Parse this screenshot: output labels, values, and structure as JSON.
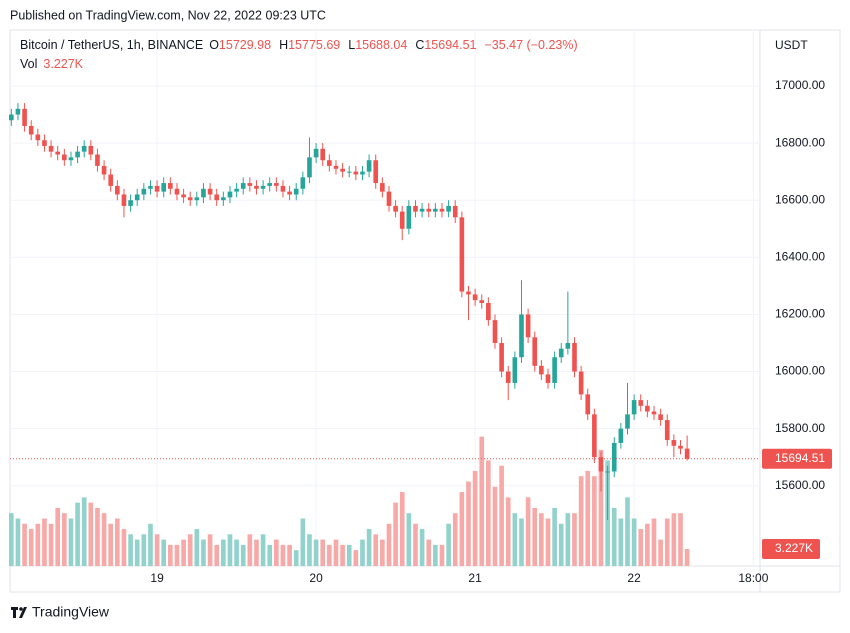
{
  "chart_data": {
    "type": "candlestick",
    "published": "Published on TradingView.com, Nov 22, 2022 09:23 UTC",
    "title": "Bitcoin / TetherUS, 1h, BINANCE",
    "field_labels": [
      "O",
      "H",
      "L",
      "C"
    ],
    "change": "−35.47 (−0.23%)",
    "volume_title": "Vol",
    "volume_label": "3.227K",
    "currency": "USDT",
    "brand": "TradingView",
    "up_color": "#26a69a",
    "down_color": "#ef5350",
    "volume_up_color": "#92d2cc",
    "volume_down_color": "#f7a9a7",
    "grid": true,
    "xlim": [
      -0.2,
      113
    ],
    "xticks": [
      {
        "value": 22,
        "label": "19"
      },
      {
        "value": 46,
        "label": "20"
      },
      {
        "value": 70,
        "label": "21"
      },
      {
        "value": 94,
        "label": "22"
      },
      {
        "value": 112,
        "label": "18:00"
      }
    ],
    "ylim": [
      15319,
      17196
    ],
    "yticks": [
      {
        "value": 15600,
        "label": "15600.00"
      },
      {
        "value": 15800,
        "label": "15800.00"
      },
      {
        "value": 16000,
        "label": "16000.00"
      },
      {
        "value": 16200,
        "label": "16200.00"
      },
      {
        "value": 16400,
        "label": "16400.00"
      },
      {
        "value": 16600,
        "label": "16600.00"
      },
      {
        "value": 16800,
        "label": "16800.00"
      },
      {
        "value": 17000,
        "label": "17000.00"
      }
    ],
    "volume_ylim": [
      0,
      101.5
    ],
    "open": [
      16880,
      16900,
      16920,
      16860,
      16830,
      16810,
      16790,
      16770,
      16760,
      16740,
      16750,
      16770,
      16790,
      16760,
      16720,
      16690,
      16650,
      16620,
      16580,
      16600,
      16620,
      16640,
      16650,
      16630,
      16660,
      16640,
      16620,
      16610,
      16600,
      16610,
      16640,
      16620,
      16600,
      16610,
      16630,
      16640,
      16660,
      16650,
      16640,
      16650,
      16660,
      16650,
      16630,
      16620,
      16640,
      16680,
      16750,
      16780,
      16740,
      16720,
      16710,
      16700,
      16700,
      16690,
      16700,
      16740,
      16660,
      16630,
      16580,
      16560,
      16500,
      16580,
      16560,
      16570,
      16560,
      16570,
      16560,
      16580,
      16540,
      16280,
      16270,
      16250,
      16240,
      16180,
      16100,
      16000,
      15960,
      16050,
      16200,
      16120,
      16020,
      15990,
      15960,
      16050,
      16080,
      16100,
      16000,
      15920,
      15850,
      15700,
      15650,
      15650,
      15750,
      15800,
      15850,
      15900,
      15880,
      15860,
      15850,
      15830,
      15760,
      15740,
      15729.98
    ],
    "high": [
      16920,
      16940,
      16940,
      16880,
      16850,
      16830,
      16810,
      16790,
      16780,
      16770,
      16790,
      16810,
      16810,
      16780,
      16740,
      16710,
      16670,
      16640,
      16620,
      16640,
      16660,
      16670,
      16670,
      16680,
      16680,
      16660,
      16640,
      16630,
      16630,
      16660,
      16660,
      16640,
      16630,
      16650,
      16660,
      16680,
      16680,
      16670,
      16670,
      16680,
      16680,
      16670,
      16650,
      16660,
      16700,
      16820,
      16800,
      16800,
      16760,
      16740,
      16730,
      16720,
      16720,
      16720,
      16760,
      16760,
      16680,
      16650,
      16600,
      16580,
      16600,
      16600,
      16590,
      16590,
      16590,
      16590,
      16600,
      16600,
      16560,
      16300,
      16290,
      16270,
      16260,
      16200,
      16120,
      16020,
      16070,
      16320,
      16220,
      16140,
      16040,
      16010,
      16070,
      16100,
      16280,
      16120,
      16020,
      15940,
      15870,
      15720,
      15670,
      15770,
      15820,
      15960,
      15920,
      15920,
      15900,
      15880,
      15870,
      15850,
      15780,
      15760,
      15775.69
    ],
    "low": [
      16860,
      16880,
      16840,
      16810,
      16790,
      16770,
      16750,
      16740,
      16720,
      16720,
      16730,
      16750,
      16740,
      16700,
      16670,
      16630,
      16600,
      16540,
      16560,
      16580,
      16600,
      16620,
      16610,
      16610,
      16620,
      16600,
      16590,
      16580,
      16580,
      16590,
      16600,
      16580,
      16580,
      16590,
      16610,
      16620,
      16630,
      16620,
      16620,
      16630,
      16630,
      16610,
      16600,
      16600,
      16620,
      16660,
      16730,
      16720,
      16700,
      16690,
      16680,
      16680,
      16670,
      16670,
      16680,
      16640,
      16610,
      16560,
      16540,
      16460,
      16480,
      16540,
      16540,
      16540,
      16540,
      16540,
      16540,
      16520,
      16260,
      16180,
      16230,
      16220,
      16160,
      16080,
      15980,
      15900,
      15940,
      16030,
      16100,
      16000,
      15970,
      15940,
      15940,
      16030,
      16060,
      15980,
      15900,
      15830,
      15680,
      15580,
      15480,
      15630,
      15730,
      15780,
      15830,
      15860,
      15840,
      15830,
      15810,
      15740,
      15700,
      15710,
      15688.04
    ],
    "close": [
      16900,
      16920,
      16860,
      16830,
      16810,
      16790,
      16770,
      16760,
      16740,
      16750,
      16770,
      16790,
      16760,
      16720,
      16690,
      16650,
      16620,
      16580,
      16600,
      16620,
      16640,
      16650,
      16630,
      16660,
      16640,
      16620,
      16610,
      16600,
      16610,
      16640,
      16620,
      16600,
      16610,
      16630,
      16640,
      16660,
      16650,
      16640,
      16650,
      16660,
      16650,
      16630,
      16620,
      16640,
      16680,
      16750,
      16780,
      16740,
      16720,
      16710,
      16700,
      16700,
      16690,
      16700,
      16740,
      16660,
      16630,
      16580,
      16560,
      16500,
      16580,
      16560,
      16570,
      16560,
      16570,
      16560,
      16580,
      16540,
      16280,
      16270,
      16250,
      16240,
      16180,
      16100,
      16000,
      15960,
      16050,
      16200,
      16120,
      16020,
      15990,
      15960,
      16050,
      16080,
      16100,
      16000,
      15920,
      15850,
      15700,
      15650,
      15650,
      15750,
      15800,
      15850,
      15900,
      15880,
      15860,
      15850,
      15830,
      15760,
      15740,
      15729.98,
      15694.51
    ],
    "volume": [
      10,
      9,
      8,
      7,
      8,
      9,
      8,
      11,
      10,
      9,
      12,
      13,
      12,
      11,
      10,
      8,
      9,
      7,
      6,
      5,
      6,
      8,
      6,
      5,
      4,
      4,
      5,
      6,
      7,
      5,
      6,
      4,
      5,
      6,
      5,
      4,
      6,
      5,
      6,
      4,
      5,
      4,
      4,
      3,
      9,
      6,
      5,
      5,
      4,
      5,
      4,
      4,
      3,
      5,
      7,
      6,
      5,
      8,
      12,
      14,
      10,
      8,
      7,
      5,
      4,
      4,
      8,
      10,
      14,
      16,
      18,
      24.5,
      20,
      15,
      19,
      13,
      10,
      9,
      13,
      11,
      10,
      9,
      11,
      8,
      10,
      10,
      17,
      18,
      17,
      22,
      20,
      11,
      9,
      13,
      9,
      7,
      8,
      9,
      5,
      9,
      10,
      10,
      3.227
    ]
  }
}
